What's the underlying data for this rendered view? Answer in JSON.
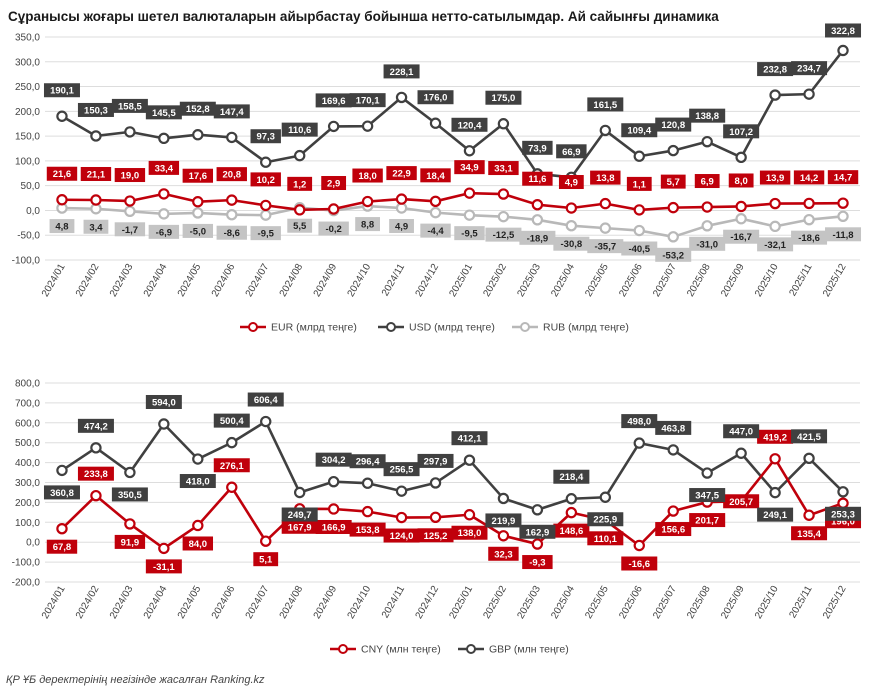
{
  "title": "Сұранысы жоғары шетел валюталарын айырбастау бойынша нетто-сатылымдар. Ай сайынғы динамика",
  "source": "ҚР ҰБ деректерінің негізінде жасалған Ranking.kz",
  "colors": {
    "eur": "#c0000b",
    "usd": "#404040",
    "rub": "#b8b8b8",
    "cny": "#c0000b",
    "gbp": "#404040",
    "grid": "#dddddd",
    "label_text": "#ffffff",
    "rub_label_bg": "#c4c4c4",
    "rub_label_text": "#222222"
  },
  "chart_data": [
    {
      "type": "line",
      "categories": [
        "2024/01",
        "2024/02",
        "2024/03",
        "2024/04",
        "2024/05",
        "2024/06",
        "2024/07",
        "2024/08",
        "2024/09",
        "2024/10",
        "2024/11",
        "2024/12",
        "2025/01",
        "2025/02",
        "2025/03",
        "2025/04",
        "2025/05",
        "2025/06",
        "2025/07",
        "2025/08",
        "2025/09",
        "2025/10",
        "2025/11",
        "2025/12"
      ],
      "ylim": [
        -100,
        350
      ],
      "yticks": [
        -100,
        -50,
        0,
        50,
        100,
        150,
        200,
        250,
        300,
        350
      ],
      "ytick_labels": [
        "-100,0",
        "-50,0",
        "0,0",
        "50,0",
        "100,0",
        "150,0",
        "200,0",
        "250,0",
        "300,0",
        "350,0"
      ],
      "series": [
        {
          "name": "EUR (млрд теңге)",
          "key": "eur",
          "values": [
            21.6,
            21.1,
            19.0,
            33.4,
            17.6,
            20.8,
            10.2,
            1.2,
            2.9,
            18.0,
            22.9,
            18.4,
            34.9,
            33.1,
            11.6,
            4.9,
            13.8,
            1.1,
            5.7,
            6.9,
            8.0,
            13.9,
            14.2,
            14.7
          ],
          "labels": [
            "21,6",
            "21,1",
            "19,0",
            "33,4",
            "17,6",
            "20,8",
            "10,2",
            "1,2",
            "2,9",
            "18,0",
            "22,9",
            "18,4",
            "34,9",
            "33,1",
            "11,6",
            "4,9",
            "13,8",
            "1,1",
            "5,7",
            "6,9",
            "8,0",
            "13,9",
            "14,2",
            "14,7"
          ]
        },
        {
          "name": "USD (млрд теңге)",
          "key": "usd",
          "values": [
            190.1,
            150.3,
            158.5,
            145.5,
            152.8,
            147.4,
            97.3,
            110.6,
            169.6,
            170.1,
            228.1,
            176.0,
            120.4,
            175.0,
            73.9,
            66.9,
            161.5,
            109.4,
            120.8,
            138.8,
            107.2,
            232.8,
            234.7,
            322.8
          ],
          "labels": [
            "190,1",
            "150,3",
            "158,5",
            "145,5",
            "152,8",
            "147,4",
            "97,3",
            "110,6",
            "169,6",
            "170,1",
            "228,1",
            "176,0",
            "120,4",
            "175,0",
            "73,9",
            "66,9",
            "161,5",
            "109,4",
            "120,8",
            "138,8",
            "107,2",
            "232,8",
            "234,7",
            "322,8"
          ]
        },
        {
          "name": "RUB (млрд теңге)",
          "key": "rub",
          "values": [
            4.8,
            3.4,
            -1.7,
            -6.9,
            -5.0,
            -8.6,
            -9.5,
            5.5,
            -0.2,
            8.8,
            4.9,
            -4.4,
            -9.5,
            -12.5,
            -18.9,
            -30.8,
            -35.7,
            -40.5,
            -53.2,
            -31.0,
            -16.7,
            -32.1,
            -18.6,
            -11.8
          ],
          "labels": [
            "4,8",
            "3,4",
            "-1,7",
            "-6,9",
            "-5,0",
            "-8,6",
            "-9,5",
            "5,5",
            "-0,2",
            "8,8",
            "4,9",
            "-4,4",
            "-9,5",
            "-12,5",
            "-18,9",
            "-30,8",
            "-35,7",
            "-40,5",
            "-53,2",
            "-31,0",
            "-16,7",
            "-32,1",
            "-18,6",
            "-11,8"
          ]
        }
      ]
    },
    {
      "type": "line",
      "categories": [
        "2024/01",
        "2024/02",
        "2024/03",
        "2024/04",
        "2024/05",
        "2024/06",
        "2024/07",
        "2024/08",
        "2024/09",
        "2024/10",
        "2024/11",
        "2024/12",
        "2025/01",
        "2025/02",
        "2025/03",
        "2025/04",
        "2025/05",
        "2025/06",
        "2025/07",
        "2025/08",
        "2025/09",
        "2025/10",
        "2025/11",
        "2025/12"
      ],
      "ylim": [
        -200,
        800
      ],
      "yticks": [
        -200,
        -100,
        0,
        100,
        200,
        300,
        400,
        500,
        600,
        700,
        800
      ],
      "ytick_labels": [
        "-200,0",
        "-100,0",
        "0,0",
        "100,0",
        "200,0",
        "300,0",
        "400,0",
        "500,0",
        "600,0",
        "700,0",
        "800,0"
      ],
      "series": [
        {
          "name": "CNY (млн теңге)",
          "key": "cny",
          "values": [
            67.8,
            233.8,
            91.9,
            -31.1,
            84.0,
            276.1,
            5.1,
            167.9,
            166.9,
            153.8,
            124.0,
            125.2,
            138.0,
            32.3,
            -9.3,
            148.6,
            110.1,
            -16.6,
            156.6,
            201.7,
            205.7,
            419.2,
            135.4,
            196.0
          ],
          "labels": [
            "67,8",
            "233,8",
            "91,9",
            "-31,1",
            "84,0",
            "276,1",
            "5,1",
            "167,9",
            "166,9",
            "153,8",
            "124,0",
            "125,2",
            "138,0",
            "32,3",
            "-9,3",
            "148,6",
            "110,1",
            "-16,6",
            "156,6",
            "201,7",
            "205,7",
            "419,2",
            "135,4",
            "196,0"
          ]
        },
        {
          "name": "GBP (млн теңге)",
          "key": "gbp",
          "values": [
            360.8,
            474.2,
            350.5,
            594.0,
            418.0,
            500.4,
            606.4,
            249.7,
            304.2,
            296.4,
            256.5,
            297.9,
            412.1,
            219.9,
            162.9,
            218.4,
            225.9,
            498.0,
            463.8,
            347.5,
            447.0,
            249.1,
            421.5,
            253.3
          ],
          "labels": [
            "360,8",
            "474,2",
            "350,5",
            "594,0",
            "418,0",
            "500,4",
            "606,4",
            "249,7",
            "304,2",
            "296,4",
            "256,5",
            "297,9",
            "412,1",
            "219,9",
            "162,9",
            "218,4",
            "225,9",
            "498,0",
            "463,8",
            "347,5",
            "447,0",
            "249,1",
            "421,5",
            "253,3"
          ]
        }
      ]
    }
  ]
}
